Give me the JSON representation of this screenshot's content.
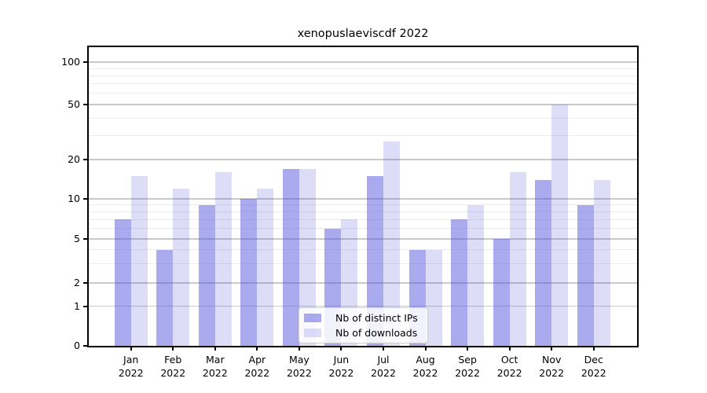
{
  "figure": {
    "background": "#ffffff"
  },
  "chart_data": {
    "type": "bar",
    "title": "xenopuslaeviscdf 2022",
    "categories": [
      "Jan 2022",
      "Feb 2022",
      "Mar 2022",
      "Apr 2022",
      "May 2022",
      "Jun 2022",
      "Jul 2022",
      "Aug 2022",
      "Sep 2022",
      "Oct 2022",
      "Nov 2022",
      "Dec 2022"
    ],
    "series": [
      {
        "name": "Nb of distinct IPs",
        "color": "#5555dd",
        "alpha": 0.5,
        "values": [
          7,
          4,
          9,
          10,
          17,
          6,
          15,
          4,
          7,
          5,
          14,
          9
        ]
      },
      {
        "name": "Nb of downloads",
        "color": "#5555dd",
        "alpha": 0.2,
        "values": [
          15,
          12,
          16,
          12,
          17,
          7,
          27,
          4,
          9,
          16,
          50,
          14
        ]
      }
    ],
    "xlabel": "",
    "ylabel": "",
    "yscale": "symlog",
    "yticks": [
      0,
      1,
      2,
      5,
      10,
      20,
      50,
      100
    ],
    "yticks_minor": [
      3,
      4,
      6,
      7,
      8,
      9,
      30,
      40,
      60,
      70,
      80,
      90
    ],
    "ylim": [
      0,
      130
    ],
    "grid": {
      "axis": "y",
      "major_color": "#c9c9c9",
      "minor_color": "#ececec"
    },
    "legend": {
      "position": "lower center",
      "entries": [
        "Nb of distinct IPs",
        "Nb of downloads"
      ]
    }
  }
}
